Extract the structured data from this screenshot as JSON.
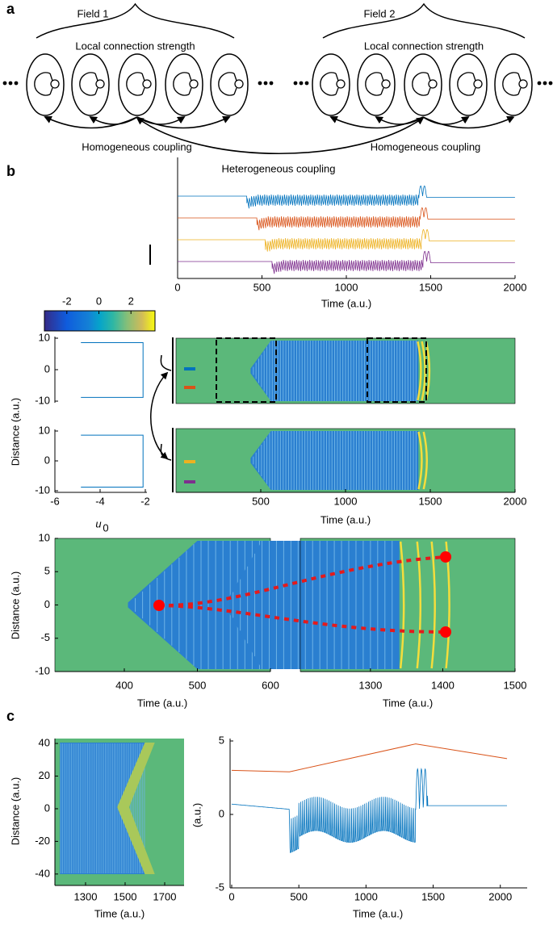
{
  "panel_labels": [
    "a",
    "b",
    "c"
  ],
  "panel_a": {
    "field_labels": [
      "Field 1",
      "Field 2"
    ],
    "local_labels": [
      "Local connection strength",
      "Local connection strength"
    ],
    "homogeneous_labels": [
      "Homogeneous coupling",
      "Homogeneous coupling"
    ]
  },
  "panel_b": {
    "traces": {
      "title": "Heterogeneous coupling",
      "xlim": [
        0,
        2000
      ],
      "xticks": [
        0,
        500,
        1000,
        1500,
        2000
      ],
      "xlabel": "Time (a.u.)",
      "colors": [
        "#0072bd",
        "#d95319",
        "#edb120",
        "#7e2f8e"
      ]
    },
    "colorbar": {
      "clim": [
        -3.4,
        3.5
      ],
      "ticks": [
        -2,
        0,
        2
      ]
    },
    "profiles": {
      "ylabel": "Distance (a.u.)",
      "ylim": [
        -10,
        10
      ],
      "yticks": [
        10,
        0,
        -10
      ],
      "xlim": [
        -6,
        -2
      ],
      "xticks": [
        -6,
        -4,
        -2
      ],
      "xlabel": "u",
      "xlabel_sub": "0",
      "profile_line": {
        "color": "#0072bd",
        "u": [
          -4.85,
          -2.1,
          -2.1,
          -4.85
        ],
        "distance": [
          8.6,
          8.6,
          -8.8,
          -8.8
        ]
      }
    },
    "fields": {
      "xlim": [
        0,
        2000
      ],
      "xticks": [
        500,
        1000,
        1500,
        2000
      ],
      "xlabel": "Time (a.u.)"
    },
    "zoom": {
      "ylabel": "Distance (a.u.)",
      "ylim": [
        -10,
        10
      ],
      "yticks": [
        10,
        5,
        0,
        -5,
        -10
      ],
      "left": {
        "xlim": [
          305,
          600
        ],
        "xticks": [
          400,
          500,
          600
        ],
        "xlabel": "Time (a.u.)"
      },
      "right": {
        "xlim": [
          1203,
          1500
        ],
        "xticks": [
          1300,
          1400,
          1500
        ],
        "xlabel": "Time (a.u.)"
      }
    }
  },
  "panel_c": {
    "heatmap": {
      "ylabel": "Distance (a.u.)",
      "ylim": [
        -47,
        43
      ],
      "yticks": [
        40,
        20,
        0,
        -20,
        -40
      ],
      "xlim": [
        1145,
        1798
      ],
      "xticks": [
        1300,
        1500,
        1700
      ],
      "xlabel": "Time (a.u.)"
    },
    "traces": {
      "ylabel": "(a.u.)",
      "xlim": [
        0,
        2200
      ],
      "ylim": [
        -5,
        5
      ],
      "yticks": [
        5,
        0,
        -5
      ],
      "xticks": [
        0,
        500,
        1000,
        1500,
        2000
      ],
      "xlabel": "Time (a.u.)",
      "series": [
        {
          "color": "#d95319",
          "x": [
            0,
            430,
            1370,
            2050
          ],
          "values": [
            3,
            2.9,
            4.8,
            3.8
          ]
        }
      ]
    }
  }
}
